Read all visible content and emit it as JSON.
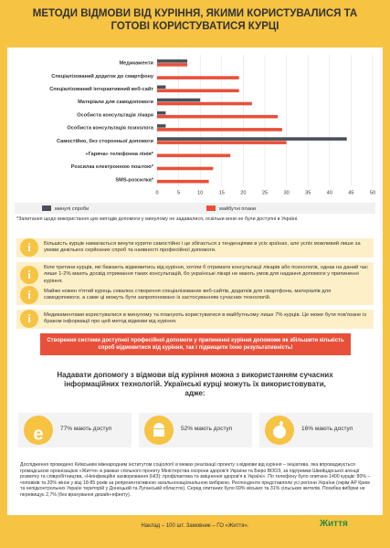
{
  "title": "МЕТОДИ ВІДМОВИ ВІД КУРІННЯ, ЯКИМИ КОРИСТУВАЛИСЯ ТА ГОТОВІ КОРИСТУВАТИСЯ КУРЦІ",
  "chart_data": {
    "type": "hbar",
    "categories": [
      "Медикаменти",
      "Спеціалізований додаток до смартфону",
      "Спеціалізований інтерактивний веб-сайт",
      "Матеріали для самодопомоги",
      "Особиста консультація лікаря",
      "Особиста консультація психолога",
      "Самостійно, без сторонньої допомоги",
      "«Гаряча» телефонна лінія*",
      "Розсилка електронною поштою*",
      "SMS-розсилка*"
    ],
    "series": [
      {
        "name": "минулі спроби",
        "color": "#4a5058",
        "values": [
          7,
          0,
          2,
          10,
          2,
          2,
          44,
          null,
          null,
          null
        ]
      },
      {
        "name": "майбутні плани",
        "color": "#e8503a",
        "values": [
          7,
          19,
          19,
          22,
          28,
          29,
          30,
          17,
          13,
          12
        ]
      }
    ],
    "xlim": [
      0,
      50
    ],
    "xticks": [
      0,
      5,
      10,
      15,
      20,
      25,
      30,
      35,
      40,
      45,
      50
    ],
    "grid": true,
    "footnote": "*Запитання щодо використання цих методів допомоги у минулому не задавалися, оскільки вони не були доступні в Україні."
  },
  "facts": [
    "Більшість курців намагається кинути курити самостійно і це збігається з тенденціями в усіх країнах, але успіх можливий лише за умови декількох серйозних спроб та наявності професійної допомоги.",
    "Біля третини курців, які бажають відмовитись від куріння, хотіли б отримати консультації лікарів або психологів, однак на даний час лише 1-2% мають досвід отримання таких консультацій, бо українські лікарі не мають умов для надання допомоги у припиненні куріння.",
    "Майже кожен п'ятий курець схвалює створення спеціалізованих веб-сайтів, додатків для смартфона, матеріалів для самодопомоги, а саме ці можуть бути запропоновано із застосуванням сучасних технологій.",
    "Медикаментами користувалися в минулому та планують користуватися в майбутньому лише 7% курців. Це може бути пов'язане із браком інформації про цей метод відмови від куріння."
  ],
  "banner": "Створення системи доступної професійної допомоги у припиненні куріння допоможе як збільшити кількість спроб відмовитися від куріння, так і підвищити їхню результативність!",
  "tech_heading": "Надавати допомогу з відмови від куріння можна з використанням сучасних інформаційних технологій. Українські курці можуть їх використовувати, адже:",
  "access": [
    "77% мають доступ",
    "52% мають доступ",
    "16% мають доступ"
  ],
  "study": "Дослідження проведено Київським міжнародним інститутом соціології в межах реалізації проекту з відмови від куріння – ініціатива, яка впроваджується громадською організацією «Життя» в рамках спільного проекту Міністерства охорони здоров'я України та Бюро ВООЗ, за підтримки Швейцарської агенції розвитку та співробітництва, «Неінфекційні захворювання (НІЗ): профілактика та зміцнення здоров'я в Україні». По телефону було опитано 1400 курців: 80% – чоловіків та 20% жінок у віці 18-85 років за репрезентативною загальнонаціональною вибіркою. Респонденти представляли усі регіони України (окрім АР Крим та непідконтрольних Україні територій у Донецькій та Луганській областях). Серед опитаних було 69% міських та 31% сільських жителів. Похибка вибірки не перевищує 2,7% (без врахування дизайн-ефекту).",
  "imprint": "Наклад – 100 шт. Замовник – ГО «Життя».",
  "logo": "Життя"
}
